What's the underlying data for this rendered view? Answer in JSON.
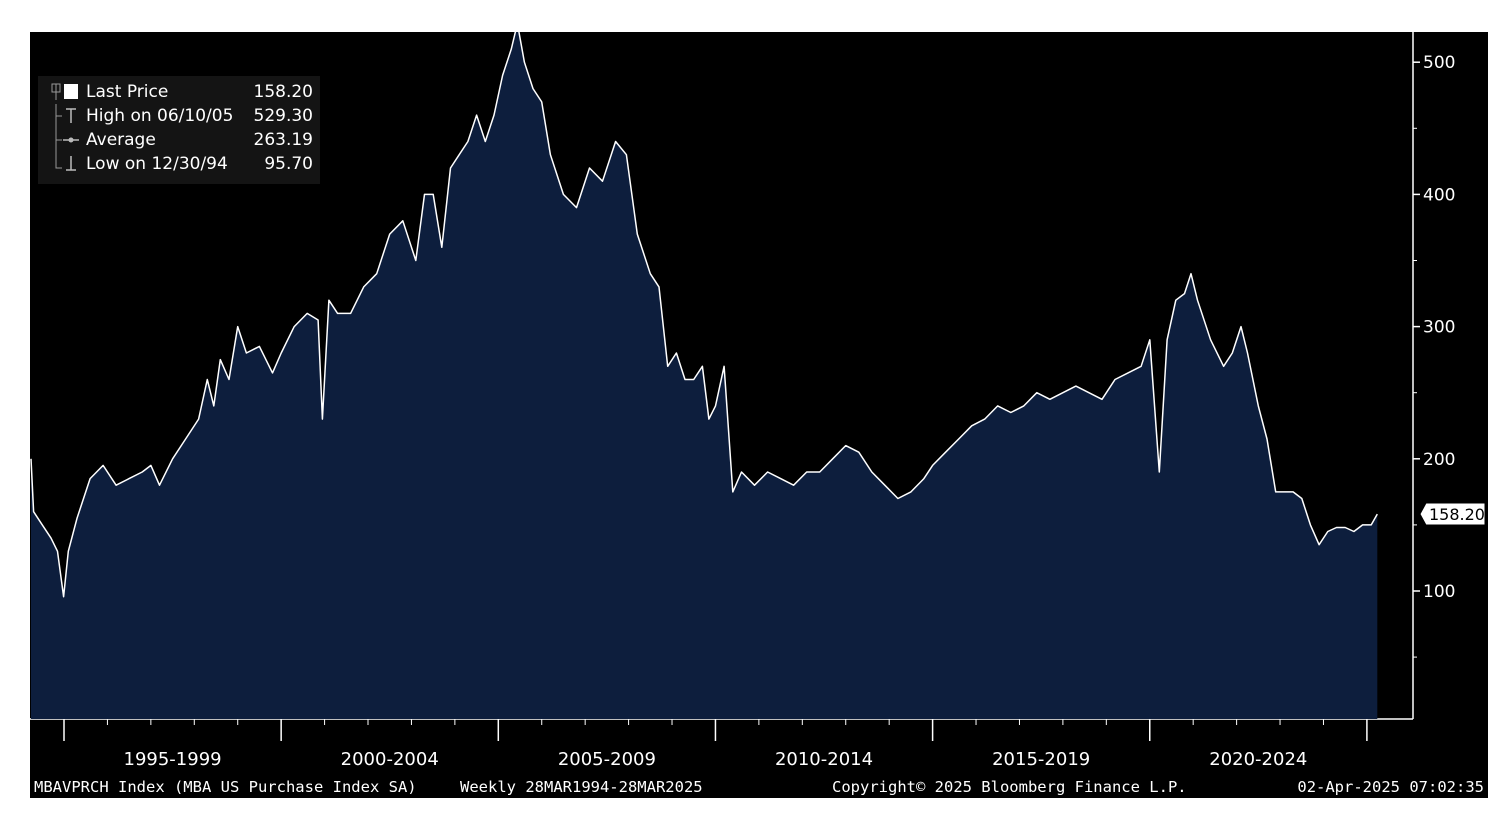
{
  "chart_data": {
    "type": "area",
    "title": "",
    "xlabel": "",
    "ylabel": "",
    "frequency": "Weekly",
    "date_range": [
      "1994-03-28",
      "2025-03-28"
    ],
    "ylim": [
      55,
      560
    ],
    "yticks": [
      100,
      200,
      300,
      400,
      500
    ],
    "x_period_labels": [
      "1995-1999",
      "2000-2004",
      "2005-2009",
      "2010-2014",
      "2015-2019",
      "2020-2024"
    ],
    "x_period_starts": [
      1995,
      2000,
      2005,
      2010,
      2015,
      2020
    ],
    "grid": false,
    "legend_position": "top-left",
    "line_color": "#ffffff",
    "fill_color": "#0d1e3d",
    "background_color": "#000000",
    "last_value_label": "158.20",
    "series": [
      {
        "name": "Last Price",
        "points": [
          [
            1994.24,
            200
          ],
          [
            1994.3,
            160
          ],
          [
            1994.5,
            150
          ],
          [
            1994.7,
            140
          ],
          [
            1994.85,
            130
          ],
          [
            1994.99,
            95.7
          ],
          [
            1995.1,
            130
          ],
          [
            1995.3,
            155
          ],
          [
            1995.6,
            185
          ],
          [
            1995.9,
            195
          ],
          [
            1996.2,
            180
          ],
          [
            1996.5,
            185
          ],
          [
            1996.8,
            190
          ],
          [
            1997.0,
            195
          ],
          [
            1997.2,
            180
          ],
          [
            1997.5,
            200
          ],
          [
            1997.8,
            215
          ],
          [
            1998.1,
            230
          ],
          [
            1998.3,
            260
          ],
          [
            1998.45,
            240
          ],
          [
            1998.6,
            275
          ],
          [
            1998.8,
            260
          ],
          [
            1999.0,
            300
          ],
          [
            1999.2,
            280
          ],
          [
            1999.5,
            285
          ],
          [
            1999.8,
            265
          ],
          [
            2000.0,
            280
          ],
          [
            2000.3,
            300
          ],
          [
            2000.6,
            310
          ],
          [
            2000.85,
            305
          ],
          [
            2000.95,
            230
          ],
          [
            2001.1,
            320
          ],
          [
            2001.3,
            310
          ],
          [
            2001.6,
            310
          ],
          [
            2001.9,
            330
          ],
          [
            2002.2,
            340
          ],
          [
            2002.5,
            370
          ],
          [
            2002.8,
            380
          ],
          [
            2003.1,
            350
          ],
          [
            2003.3,
            400
          ],
          [
            2003.5,
            400
          ],
          [
            2003.7,
            360
          ],
          [
            2003.9,
            420
          ],
          [
            2004.1,
            430
          ],
          [
            2004.3,
            440
          ],
          [
            2004.5,
            460
          ],
          [
            2004.7,
            440
          ],
          [
            2004.9,
            460
          ],
          [
            2005.1,
            490
          ],
          [
            2005.3,
            510
          ],
          [
            2005.44,
            529.3
          ],
          [
            2005.6,
            500
          ],
          [
            2005.8,
            480
          ],
          [
            2006.0,
            470
          ],
          [
            2006.2,
            430
          ],
          [
            2006.5,
            400
          ],
          [
            2006.8,
            390
          ],
          [
            2007.1,
            420
          ],
          [
            2007.4,
            410
          ],
          [
            2007.7,
            440
          ],
          [
            2007.95,
            430
          ],
          [
            2008.2,
            370
          ],
          [
            2008.5,
            340
          ],
          [
            2008.7,
            330
          ],
          [
            2008.9,
            270
          ],
          [
            2009.1,
            280
          ],
          [
            2009.3,
            260
          ],
          [
            2009.5,
            260
          ],
          [
            2009.7,
            270
          ],
          [
            2009.85,
            230
          ],
          [
            2010.0,
            240
          ],
          [
            2010.2,
            270
          ],
          [
            2010.4,
            175
          ],
          [
            2010.6,
            190
          ],
          [
            2010.9,
            180
          ],
          [
            2011.2,
            190
          ],
          [
            2011.5,
            185
          ],
          [
            2011.8,
            180
          ],
          [
            2012.1,
            190
          ],
          [
            2012.4,
            190
          ],
          [
            2012.7,
            200
          ],
          [
            2013.0,
            210
          ],
          [
            2013.3,
            205
          ],
          [
            2013.6,
            190
          ],
          [
            2013.9,
            180
          ],
          [
            2014.2,
            170
          ],
          [
            2014.5,
            175
          ],
          [
            2014.8,
            185
          ],
          [
            2015.0,
            195
          ],
          [
            2015.3,
            205
          ],
          [
            2015.6,
            215
          ],
          [
            2015.9,
            225
          ],
          [
            2016.2,
            230
          ],
          [
            2016.5,
            240
          ],
          [
            2016.8,
            235
          ],
          [
            2017.1,
            240
          ],
          [
            2017.4,
            250
          ],
          [
            2017.7,
            245
          ],
          [
            2018.0,
            250
          ],
          [
            2018.3,
            255
          ],
          [
            2018.6,
            250
          ],
          [
            2018.9,
            245
          ],
          [
            2019.2,
            260
          ],
          [
            2019.5,
            265
          ],
          [
            2019.8,
            270
          ],
          [
            2020.0,
            290
          ],
          [
            2020.22,
            190
          ],
          [
            2020.4,
            290
          ],
          [
            2020.6,
            320
          ],
          [
            2020.8,
            325
          ],
          [
            2020.95,
            340
          ],
          [
            2021.1,
            320
          ],
          [
            2021.4,
            290
          ],
          [
            2021.7,
            270
          ],
          [
            2021.9,
            280
          ],
          [
            2022.1,
            300
          ],
          [
            2022.25,
            280
          ],
          [
            2022.5,
            240
          ],
          [
            2022.7,
            215
          ],
          [
            2022.9,
            175
          ],
          [
            2023.1,
            175
          ],
          [
            2023.3,
            175
          ],
          [
            2023.5,
            170
          ],
          [
            2023.7,
            150
          ],
          [
            2023.9,
            135
          ],
          [
            2024.1,
            145
          ],
          [
            2024.3,
            148
          ],
          [
            2024.5,
            148
          ],
          [
            2024.7,
            145
          ],
          [
            2024.9,
            150
          ],
          [
            2025.1,
            150
          ],
          [
            2025.24,
            158.2
          ]
        ]
      }
    ]
  },
  "legend": {
    "items": [
      {
        "label": "Last Price",
        "value": "158.20",
        "symbol": "box"
      },
      {
        "label": "High on 06/10/05",
        "value": "529.30",
        "symbol": "high"
      },
      {
        "label": "Average",
        "value": "263.19",
        "symbol": "avg"
      },
      {
        "label": "Low on 12/30/94",
        "value": "95.70",
        "symbol": "low"
      }
    ]
  },
  "footer": {
    "ticker": "MBAVPRCH Index (MBA US Purchase Index SA)",
    "period": "Weekly 28MAR1994-28MAR2025",
    "copyright": "Copyright© 2025 Bloomberg Finance L.P.",
    "timestamp": "02-Apr-2025 07:02:35"
  }
}
